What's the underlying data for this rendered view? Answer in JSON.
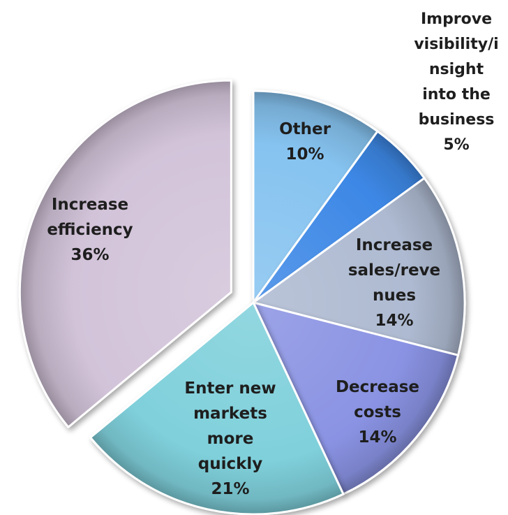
{
  "chart_data": {
    "type": "pie",
    "categories": [
      "Other",
      "Improve visibility/insight into the business",
      "Increase sales/revenues",
      "Decrease costs",
      "Enter new markets more quickly",
      "Increase efficiency"
    ],
    "values": [
      10,
      5,
      14,
      14,
      21,
      36
    ],
    "value_labels": [
      "10%",
      "5%",
      "14%",
      "14%",
      "21%",
      "36%"
    ],
    "label_lines": [
      [
        "Other"
      ],
      [
        "Improve",
        "visibility/i",
        "nsight",
        "into the",
        "business"
      ],
      [
        "Increase",
        "sales/reve",
        "nues"
      ],
      [
        "Decrease",
        "costs"
      ],
      [
        "Enter new",
        "markets",
        "more",
        "quickly"
      ],
      [
        "Increase",
        "efficiency"
      ]
    ],
    "colors": [
      "#86c3f0",
      "#3d88e6",
      "#aebad1",
      "#8a93e3",
      "#7fd0db",
      "#d2c3d9"
    ],
    "exploded": [
      "Increase efficiency"
    ],
    "title": "",
    "legend": "none"
  }
}
